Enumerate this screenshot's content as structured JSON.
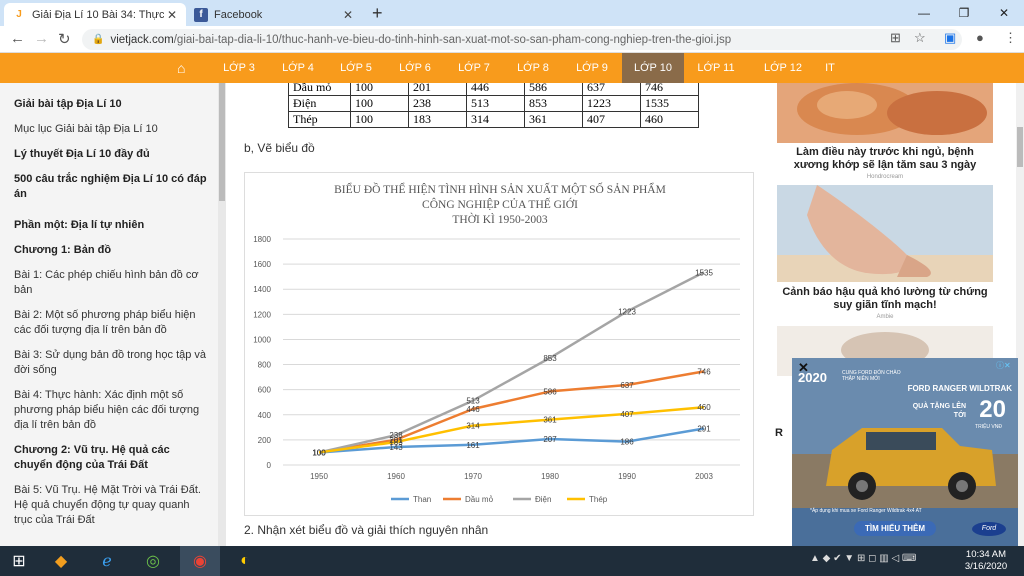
{
  "browser": {
    "tabs": [
      {
        "title": "Giải Địa Lí 10 Bài 34: Thực hành: Vẽ",
        "favicon": "J",
        "favicon_color": "#f89b1c",
        "active": true
      },
      {
        "title": "Facebook",
        "favicon": "f",
        "favicon_color": "#3b5998",
        "active": false
      }
    ],
    "url_domain": "vietjack.com",
    "url_path": "/giai-bai-tap-dia-li-10/thuc-hanh-ve-bieu-do-tinh-hinh-san-xuat-mot-so-san-pham-cong-nghiep-tren-the-gioi.jsp"
  },
  "topnav": {
    "items": [
      "LỚP 3",
      "LỚP 4",
      "LỚP 5",
      "LỚP 6",
      "LỚP 7",
      "LỚP 8",
      "LỚP 9",
      "LỚP 10",
      "LỚP 11",
      "LỚP 12",
      "IT"
    ],
    "selected": "LỚP 10",
    "accent": "#f89b1c"
  },
  "sidebar": {
    "items": [
      {
        "label": "Giải bài tập Địa Lí 10",
        "bold": true
      },
      {
        "label": "Mục lục Giải bài tập Địa Lí 10",
        "bold": false
      },
      {
        "label": "Lý thuyết Địa Lí 10 đầy đủ",
        "bold": true
      },
      {
        "label": "500 câu trắc nghiệm Địa Lí 10 có đáp án",
        "bold": true
      },
      {
        "label": "Phần một: Địa lí tự nhiên",
        "bold": true
      },
      {
        "label": "Chương 1: Bản đồ",
        "bold": true
      },
      {
        "label": "Bài 1: Các phép chiếu hình bản đồ cơ bản",
        "bold": false
      },
      {
        "label": "Bài 2: Một số phương pháp biểu hiện các đối tượng địa lí trên bản đồ",
        "bold": false
      },
      {
        "label": "Bài 3: Sử dụng bản đồ trong học tập và đời sống",
        "bold": false
      },
      {
        "label": "Bài 4: Thực hành: Xác định một số phương pháp biểu hiện các đối tượng địa lí trên bản đồ",
        "bold": false
      },
      {
        "label": "Chương 2: Vũ trụ. Hệ quả các chuyển động của Trái Đất",
        "bold": true
      },
      {
        "label": "Bài 5: Vũ Trụ. Hệ Mặt Trời và Trái Đất. Hệ quả chuyển động tự quay quanh trục của Trái Đất",
        "bold": false
      }
    ]
  },
  "main": {
    "table_rows": [
      [
        "Dầu mỏ",
        "100",
        "201",
        "446",
        "586",
        "637",
        "746"
      ],
      [
        "Điện",
        "100",
        "238",
        "513",
        "853",
        "1223",
        "1535"
      ],
      [
        "Thép",
        "100",
        "183",
        "314",
        "361",
        "407",
        "460"
      ]
    ],
    "section_b": "b, Vẽ biểu đồ",
    "section_2": "2. Nhận xét biểu đồ và giải thích nguyên nhân"
  },
  "chart_data": {
    "type": "line",
    "title": [
      "BIỂU ĐỒ THỂ HIỆN TÌNH HÌNH SẢN XUẤT MỘT SỐ SẢN PHẨM",
      "CÔNG NGHIỆP CỦA THẾ GIỚI",
      "THỜI KÌ 1950-2003"
    ],
    "x": [
      "1950",
      "1960",
      "1970",
      "1980",
      "1990",
      "2003"
    ],
    "ylim": [
      0,
      1800
    ],
    "yticks": [
      0,
      200,
      400,
      600,
      800,
      1000,
      1200,
      1400,
      1600,
      1800
    ],
    "grid": true,
    "legend_position": "bottom",
    "series": [
      {
        "name": "Than",
        "color": "#5b9bd5",
        "values": [
          100,
          143,
          161,
          207,
          186,
          291
        ]
      },
      {
        "name": "Dầu mỏ",
        "color": "#ed7d31",
        "values": [
          100,
          201,
          446,
          586,
          637,
          746
        ]
      },
      {
        "name": "Điện",
        "color": "#a5a5a5",
        "values": [
          100,
          238,
          513,
          853,
          1223,
          1535
        ]
      },
      {
        "name": "Thép",
        "color": "#ffc000",
        "values": [
          100,
          183,
          314,
          361,
          407,
          460
        ]
      }
    ]
  },
  "ads": {
    "ad1_caption": "Làm điều này trước khi ngủ, bệnh xương khớp sẽ lận tăm sau 3 ngày",
    "ad1_source": "Hondrocream",
    "ad2_caption": "Cảnh báo hậu quả khó lường từ chứng suy giãn tĩnh mạch!",
    "ad2_source": "Ambie",
    "ford": {
      "year": "2020",
      "subtitle": "CUNG FORD ĐÓN CHÀO THẬP NIÊN MỚI",
      "model": "FORD RANGER WILDTRAK",
      "gift": "QUÀ TẶNG LÊN TỚI",
      "amount": "20",
      "unit": "TRIỆU VNĐ",
      "fineprint": "*Áp dụng khi mua xe Ford Ranger Wildtrak 4x4 AT",
      "cta": "TÌM HIỂU THÊM",
      "logo": "Ford"
    }
  },
  "taskbar": {
    "time": "10:34 AM",
    "date": "3/16/2020"
  }
}
